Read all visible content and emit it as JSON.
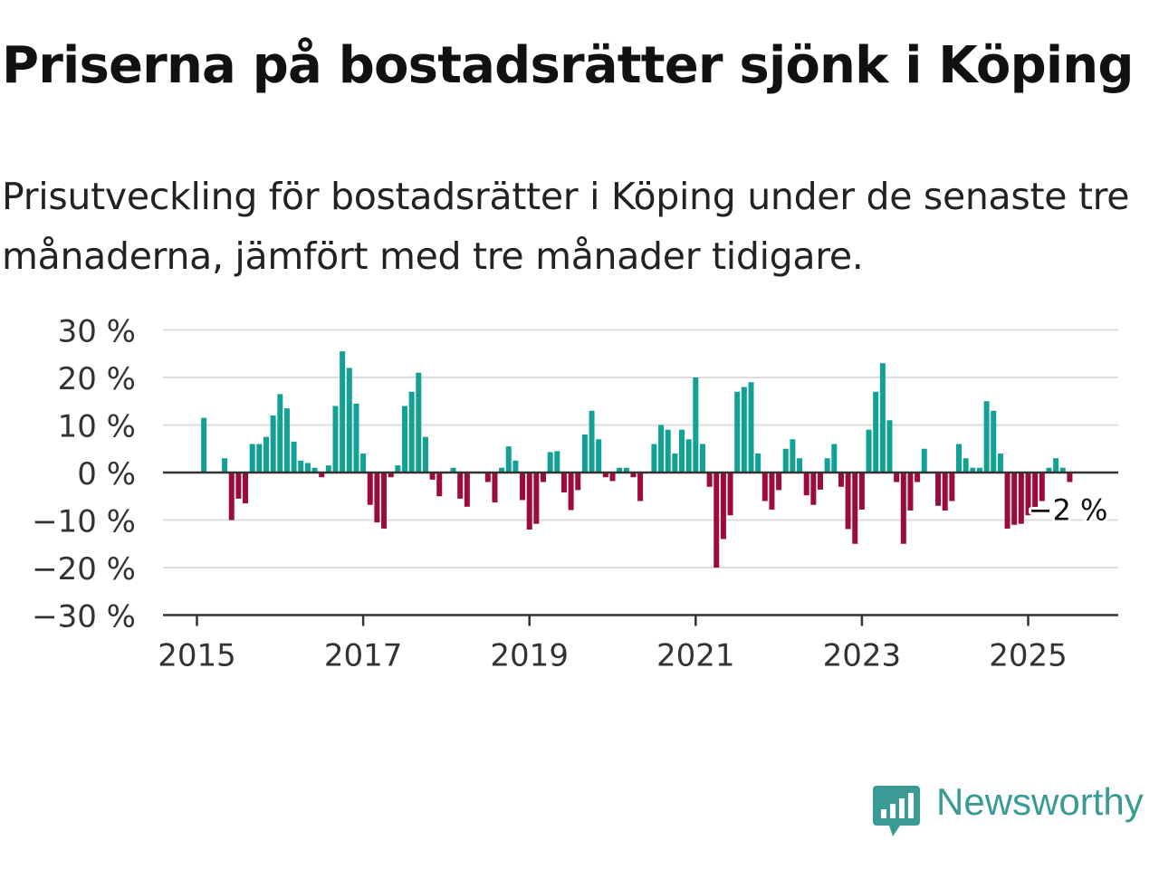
{
  "header": {
    "title": "Priserna på bostadsrätter sjönk i Köping",
    "subtitle": "Prisutveckling för bostadsrätter i Köping under de senaste tre månaderna, jämfört med tre månader tidigare."
  },
  "brand": {
    "name": "Newsworthy",
    "icon": "bar-chart-speech-bubble-icon",
    "color": "#3a9b94"
  },
  "colors": {
    "positive": "#11a295",
    "negative": "#9c0a3e",
    "grid": "#dddddd",
    "axis": "#333333"
  },
  "chart_data": {
    "type": "bar",
    "title": "Priserna på bostadsrätter sjönk i Köping",
    "subtitle": "Prisutveckling för bostadsrätter i Köping under de senaste tre månaderna, jämfört med tre månader tidigare.",
    "ylim": [
      -30,
      30
    ],
    "yticks": [
      30,
      20,
      10,
      0,
      -10,
      -20,
      -30
    ],
    "ytick_labels": [
      "30 %",
      "20 %",
      "10 %",
      "0 %",
      "−10 %",
      "−20 %",
      "−30 %"
    ],
    "xlim": [
      "2015-01",
      "2025-12"
    ],
    "xticks": [
      "2015",
      "2017",
      "2019",
      "2021",
      "2023",
      "2025"
    ],
    "grid": true,
    "annotation": {
      "text": "−2 %",
      "x": "2025-07",
      "y": -2
    },
    "x": [
      "2015-01",
      "2015-02",
      "2015-03",
      "2015-04",
      "2015-05",
      "2015-06",
      "2015-07",
      "2015-08",
      "2015-09",
      "2015-10",
      "2015-11",
      "2015-12",
      "2016-01",
      "2016-02",
      "2016-03",
      "2016-04",
      "2016-05",
      "2016-06",
      "2016-07",
      "2016-08",
      "2016-09",
      "2016-10",
      "2016-11",
      "2016-12",
      "2017-01",
      "2017-02",
      "2017-03",
      "2017-04",
      "2017-05",
      "2017-06",
      "2017-07",
      "2017-08",
      "2017-09",
      "2017-10",
      "2017-11",
      "2017-12",
      "2018-01",
      "2018-02",
      "2018-03",
      "2018-04",
      "2018-05",
      "2018-06",
      "2018-07",
      "2018-08",
      "2018-09",
      "2018-10",
      "2018-11",
      "2018-12",
      "2019-01",
      "2019-02",
      "2019-03",
      "2019-04",
      "2019-05",
      "2019-06",
      "2019-07",
      "2019-08",
      "2019-09",
      "2019-10",
      "2019-11",
      "2019-12",
      "2020-01",
      "2020-02",
      "2020-03",
      "2020-04",
      "2020-05",
      "2020-06",
      "2020-07",
      "2020-08",
      "2020-09",
      "2020-10",
      "2020-11",
      "2020-12",
      "2021-01",
      "2021-02",
      "2021-03",
      "2021-04",
      "2021-05",
      "2021-06",
      "2021-07",
      "2021-08",
      "2021-09",
      "2021-10",
      "2021-11",
      "2021-12",
      "2022-01",
      "2022-02",
      "2022-03",
      "2022-04",
      "2022-05",
      "2022-06",
      "2022-07",
      "2022-08",
      "2022-09",
      "2022-10",
      "2022-11",
      "2022-12",
      "2023-01",
      "2023-02",
      "2023-03",
      "2023-04",
      "2023-05",
      "2023-06",
      "2023-07",
      "2023-08",
      "2023-09",
      "2023-10",
      "2023-11",
      "2023-12",
      "2024-01",
      "2024-02",
      "2024-03",
      "2024-04",
      "2024-05",
      "2024-06",
      "2024-07",
      "2024-08",
      "2024-09",
      "2024-10",
      "2024-11",
      "2024-12",
      "2025-01",
      "2025-02",
      "2025-03",
      "2025-04",
      "2025-05",
      "2025-06",
      "2025-07"
    ],
    "values": [
      0,
      11.5,
      0,
      0,
      3,
      -10,
      -5.5,
      -6.5,
      6,
      6,
      7.5,
      12,
      16.5,
      13.5,
      6.5,
      2.5,
      2,
      1,
      -1,
      1.5,
      14,
      25.5,
      22,
      14.5,
      4,
      -6.8,
      -10.5,
      -11.8,
      -1,
      1.5,
      14,
      17,
      21,
      7.5,
      -1.5,
      -5,
      0,
      1,
      -5.5,
      -7.2,
      0,
      0,
      -2,
      -6.3,
      1,
      5.5,
      2.5,
      -5.8,
      -12,
      -10.8,
      -2,
      4.3,
      4.5,
      -4.2,
      -7.9,
      -3.7,
      8,
      13,
      7,
      -1,
      -1.8,
      1,
      1,
      -1,
      -6,
      0,
      6,
      10,
      9,
      4,
      9,
      7,
      20,
      6,
      -3,
      -20,
      -14,
      -9,
      17,
      18,
      19,
      4,
      -6,
      -7.8,
      -3.7,
      5,
      7,
      3,
      -4.8,
      -6.8,
      -3.6,
      3,
      6,
      -3,
      -11.9,
      -15,
      -7.8,
      9,
      17,
      23,
      11,
      -2,
      -15,
      -8,
      -2,
      5,
      0,
      -7,
      -8,
      -6,
      6,
      3,
      1,
      1,
      15,
      13,
      4,
      -11.8,
      -11,
      -10.8,
      -9,
      -8,
      -6,
      1,
      3,
      1,
      -2
    ]
  }
}
